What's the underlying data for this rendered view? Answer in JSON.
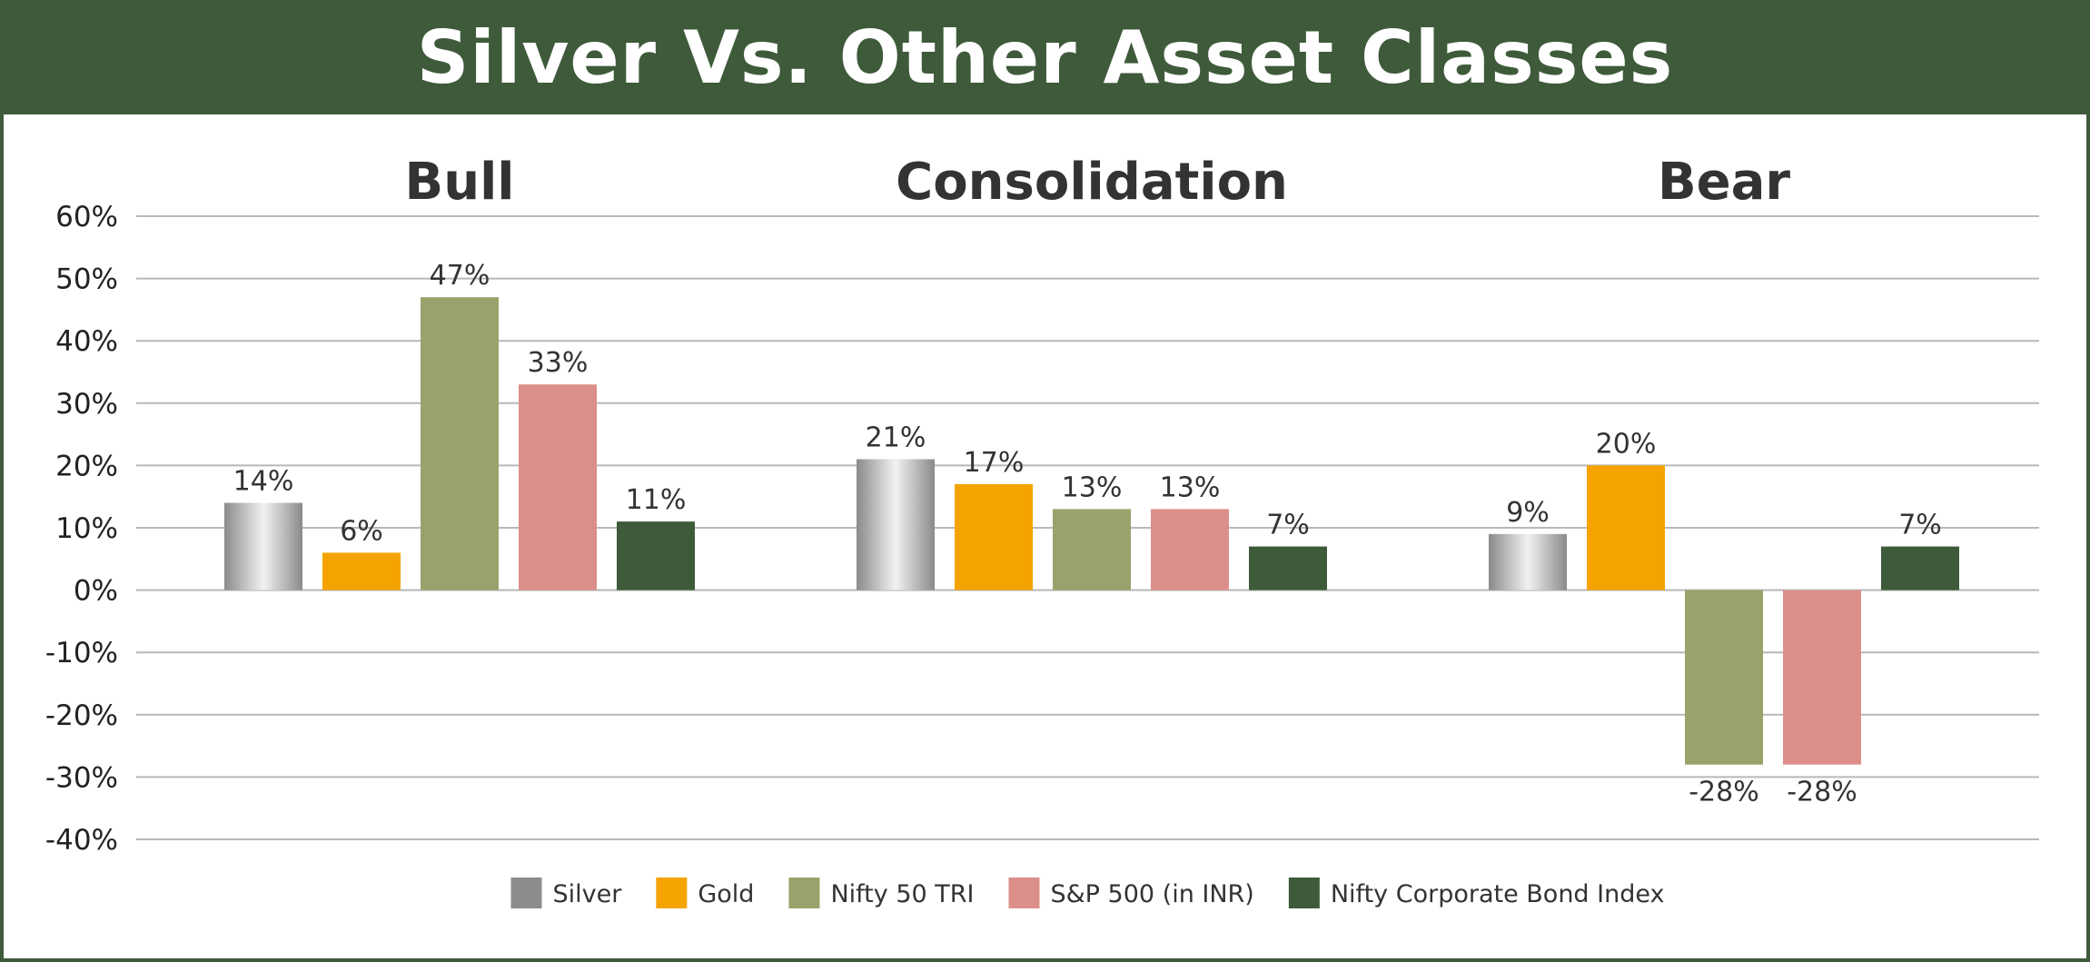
{
  "title": "Silver Vs. Other Asset Classes",
  "colors": {
    "Silver": "#a0a0a0",
    "Gold": "#f5a300",
    "Nifty 50 TRI": "#98a36c",
    "S&P 500 (in INR)": "#dc8f8a",
    "Nifty Corporate Bond Index": "#3e5a3a",
    "title_bar": "#3e5a3a"
  },
  "chart_data": {
    "type": "bar",
    "categories": [
      "Bull",
      "Consolidation",
      "Bear"
    ],
    "series": [
      {
        "name": "Silver",
        "values": [
          14,
          21,
          9
        ],
        "labels": [
          "14%",
          "21%",
          "9%"
        ]
      },
      {
        "name": "Gold",
        "values": [
          6,
          17,
          20
        ],
        "labels": [
          "6%",
          "17%",
          "20%"
        ]
      },
      {
        "name": "Nifty 50 TRI",
        "values": [
          47,
          13,
          -28
        ],
        "labels": [
          "47%",
          "13%",
          "-28%"
        ]
      },
      {
        "name": "S&P 500 (in INR)",
        "values": [
          33,
          13,
          -28
        ],
        "labels": [
          "33%",
          "13%",
          "-28%"
        ]
      },
      {
        "name": "Nifty Corporate Bond Index",
        "values": [
          11,
          7,
          7
        ],
        "labels": [
          "11%",
          "7%",
          "7%"
        ]
      }
    ],
    "yticks": [
      "60%",
      "50%",
      "40%",
      "30%",
      "20%",
      "10%",
      "0%",
      "-10%",
      "-20%",
      "-30%",
      "-40%"
    ],
    "ylim": [
      -40,
      60
    ],
    "grid": true,
    "legend_position": "bottom"
  }
}
